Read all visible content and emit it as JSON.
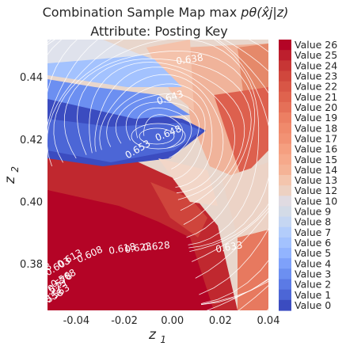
{
  "chart_data": {
    "type": "heatmap",
    "title": "Combination Sample Map max",
    "title_math": "pθ(x̂j|z)",
    "subtitle": "Attribute: Posting Key",
    "xlabel": "z1",
    "ylabel": "z2",
    "xlim": [
      -0.052,
      0.04
    ],
    "ylim": [
      0.365,
      0.452
    ],
    "x_ticks": [
      "-0.04",
      "-0.02",
      "0.00",
      "0.02",
      "0.04"
    ],
    "x_tick_values": [
      -0.04,
      -0.02,
      0.0,
      0.02,
      0.04
    ],
    "y_ticks": [
      "0.38",
      "0.40",
      "0.42",
      "0.44"
    ],
    "y_tick_values": [
      0.38,
      0.4,
      0.42,
      0.44
    ],
    "legend": [
      "Value 26",
      "Value 25",
      "Value 24",
      "Value 23",
      "Value 22",
      "Value 21",
      "Value 20",
      "Value 19",
      "Value 18",
      "Value 17",
      "Value 16",
      "Value 15",
      "Value 14",
      "Value 13",
      "Value 12",
      "Value 10",
      "Value 9",
      "Value 8",
      "Value 7",
      "Value 6",
      "Value 5",
      "Value 4",
      "Value 3",
      "Value 2",
      "Value 1",
      "Value 0"
    ],
    "legend_colors": [
      "#b40426",
      "#bd1f2d",
      "#c73635",
      "#d0473d",
      "#d85646",
      "#df634e",
      "#e57058",
      "#ec7f63",
      "#f08a6c",
      "#f29274",
      "#f59f80",
      "#f6a98b",
      "#f5b396",
      "#f4c5ad",
      "#edd1c2",
      "#e0dbe2",
      "#d3dbe7",
      "#c5d6f2",
      "#b3cdfb",
      "#a3c2fe",
      "#92b4fe",
      "#7ea1fa",
      "#6c8ff1",
      "#5b7ae5",
      "#4c66d6",
      "#3b4cc0"
    ],
    "contour_labels": [
      "0.633",
      "0.638",
      "0.643",
      "0.648",
      "0.653",
      "0.598",
      "0.613",
      "0.618",
      "0.623",
      "0.628",
      "0.608",
      "0.603",
      "0.593",
      "0.588",
      "0.583",
      "0.578",
      "0.568",
      "0.573",
      "0.563",
      "0.558"
    ],
    "colors": {
      "red": "#b40426",
      "blue": "#3b4cc0",
      "light": "#e8d6cc",
      "contour": "#ffffff"
    }
  }
}
